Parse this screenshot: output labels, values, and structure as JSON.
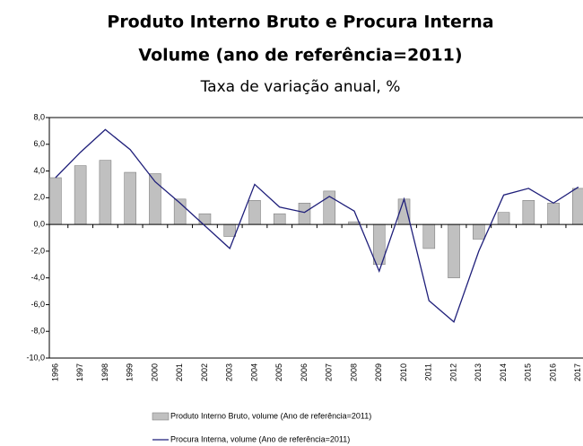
{
  "chart_data": {
    "type": "bar+line",
    "title": "Produto Interno Bruto e Procura Interna",
    "subtitle": "Volume (ano de referência=2011)",
    "ylabel": "Taxa de variação anual, %",
    "categories": [
      "1996",
      "1997",
      "1998",
      "1999",
      "2000",
      "2001",
      "2002",
      "2003",
      "2004",
      "2005",
      "2006",
      "2007",
      "2008",
      "2009",
      "2010",
      "2011",
      "2012",
      "2013",
      "2014",
      "2015",
      "2016",
      "2017"
    ],
    "series": [
      {
        "name": "Produto Interno Bruto, volume (Ano de referência=2011)",
        "type": "bar",
        "color": "#c0c0c0",
        "values": [
          3.5,
          4.4,
          4.8,
          3.9,
          3.8,
          1.9,
          0.8,
          -0.9,
          1.8,
          0.8,
          1.6,
          2.5,
          0.2,
          -3.0,
          1.9,
          -1.8,
          -4.0,
          -1.1,
          0.9,
          1.8,
          1.6,
          2.7
        ]
      },
      {
        "name": "Procura Interna, volume (Ano de referência=2011)",
        "type": "line",
        "color": "#1f1f7a",
        "values": [
          3.5,
          5.4,
          7.1,
          5.6,
          3.2,
          1.6,
          -0.1,
          -1.8,
          3.0,
          1.3,
          0.9,
          2.1,
          1.0,
          -3.5,
          1.9,
          -5.7,
          -7.3,
          -2.0,
          2.2,
          2.7,
          1.6,
          2.8
        ]
      }
    ],
    "ylim": [
      -10,
      8
    ],
    "yticks": [
      {
        "value": -10,
        "label": "-10,0"
      },
      {
        "value": -8,
        "label": "-8,0"
      },
      {
        "value": -6,
        "label": "-6,0"
      },
      {
        "value": -4,
        "label": "-4,0"
      },
      {
        "value": -2,
        "label": "-2,0"
      },
      {
        "value": 0,
        "label": "0,0"
      },
      {
        "value": 2,
        "label": "2,0"
      },
      {
        "value": 4,
        "label": "4,0"
      },
      {
        "value": 6,
        "label": "6,0"
      },
      {
        "value": 8,
        "label": "8,0"
      }
    ],
    "grid": false
  }
}
